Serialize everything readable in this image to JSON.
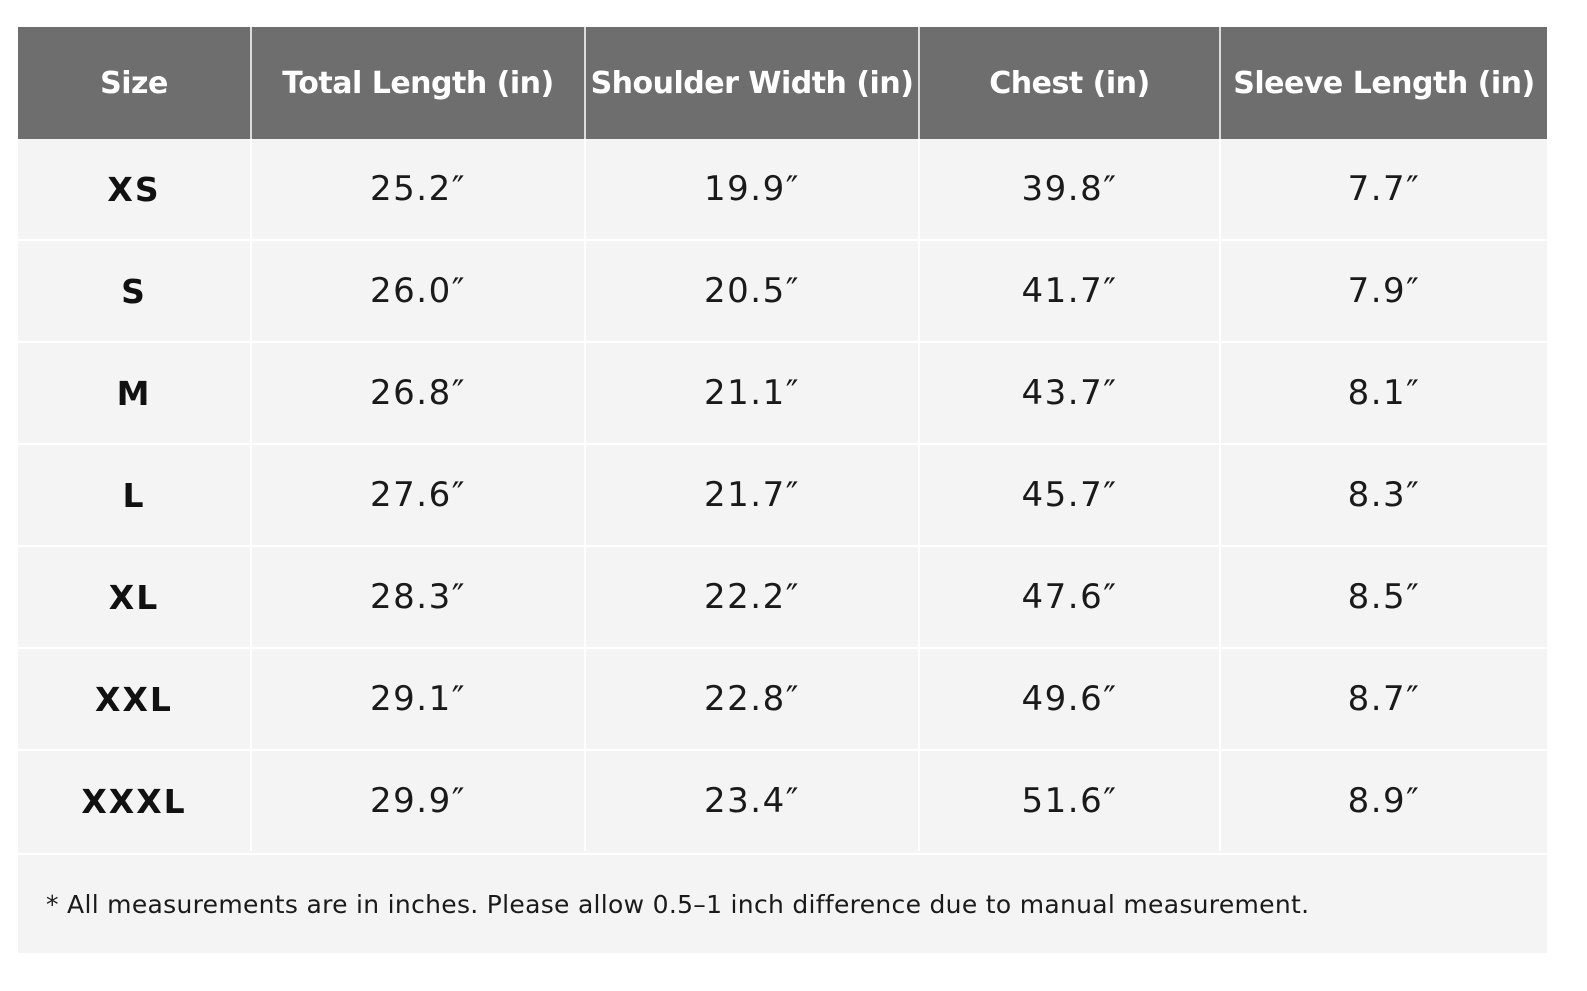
{
  "table": {
    "headers": [
      "Size",
      "Total Length (in)",
      "Shoulder Width (in)",
      "Chest (in)",
      "Sleeve Length (in)"
    ],
    "rows": [
      [
        "XS",
        "25.2″",
        "19.9″",
        "39.8″",
        "7.7″"
      ],
      [
        "S",
        "26.0″",
        "20.5″",
        "41.7″",
        "7.9″"
      ],
      [
        "M",
        "26.8″",
        "21.1″",
        "43.7″",
        "8.1″"
      ],
      [
        "L",
        "27.6″",
        "21.7″",
        "45.7″",
        "8.3″"
      ],
      [
        "XL",
        "28.3″",
        "22.2″",
        "47.6″",
        "8.5″"
      ],
      [
        "XXL",
        "29.1″",
        "22.8″",
        "49.6″",
        "8.7″"
      ],
      [
        "XXXL",
        "29.9″",
        "23.4″",
        "51.6″",
        "8.9″"
      ]
    ]
  },
  "footnote": "* All measurements are in inches. Please allow 0.5–1 inch difference due to manual measurement.",
  "colors": {
    "header_background": "#6e6e6e",
    "header_text": "#ffffff",
    "body_background": "#f4f4f4",
    "grid_lines": "#ffffff"
  }
}
